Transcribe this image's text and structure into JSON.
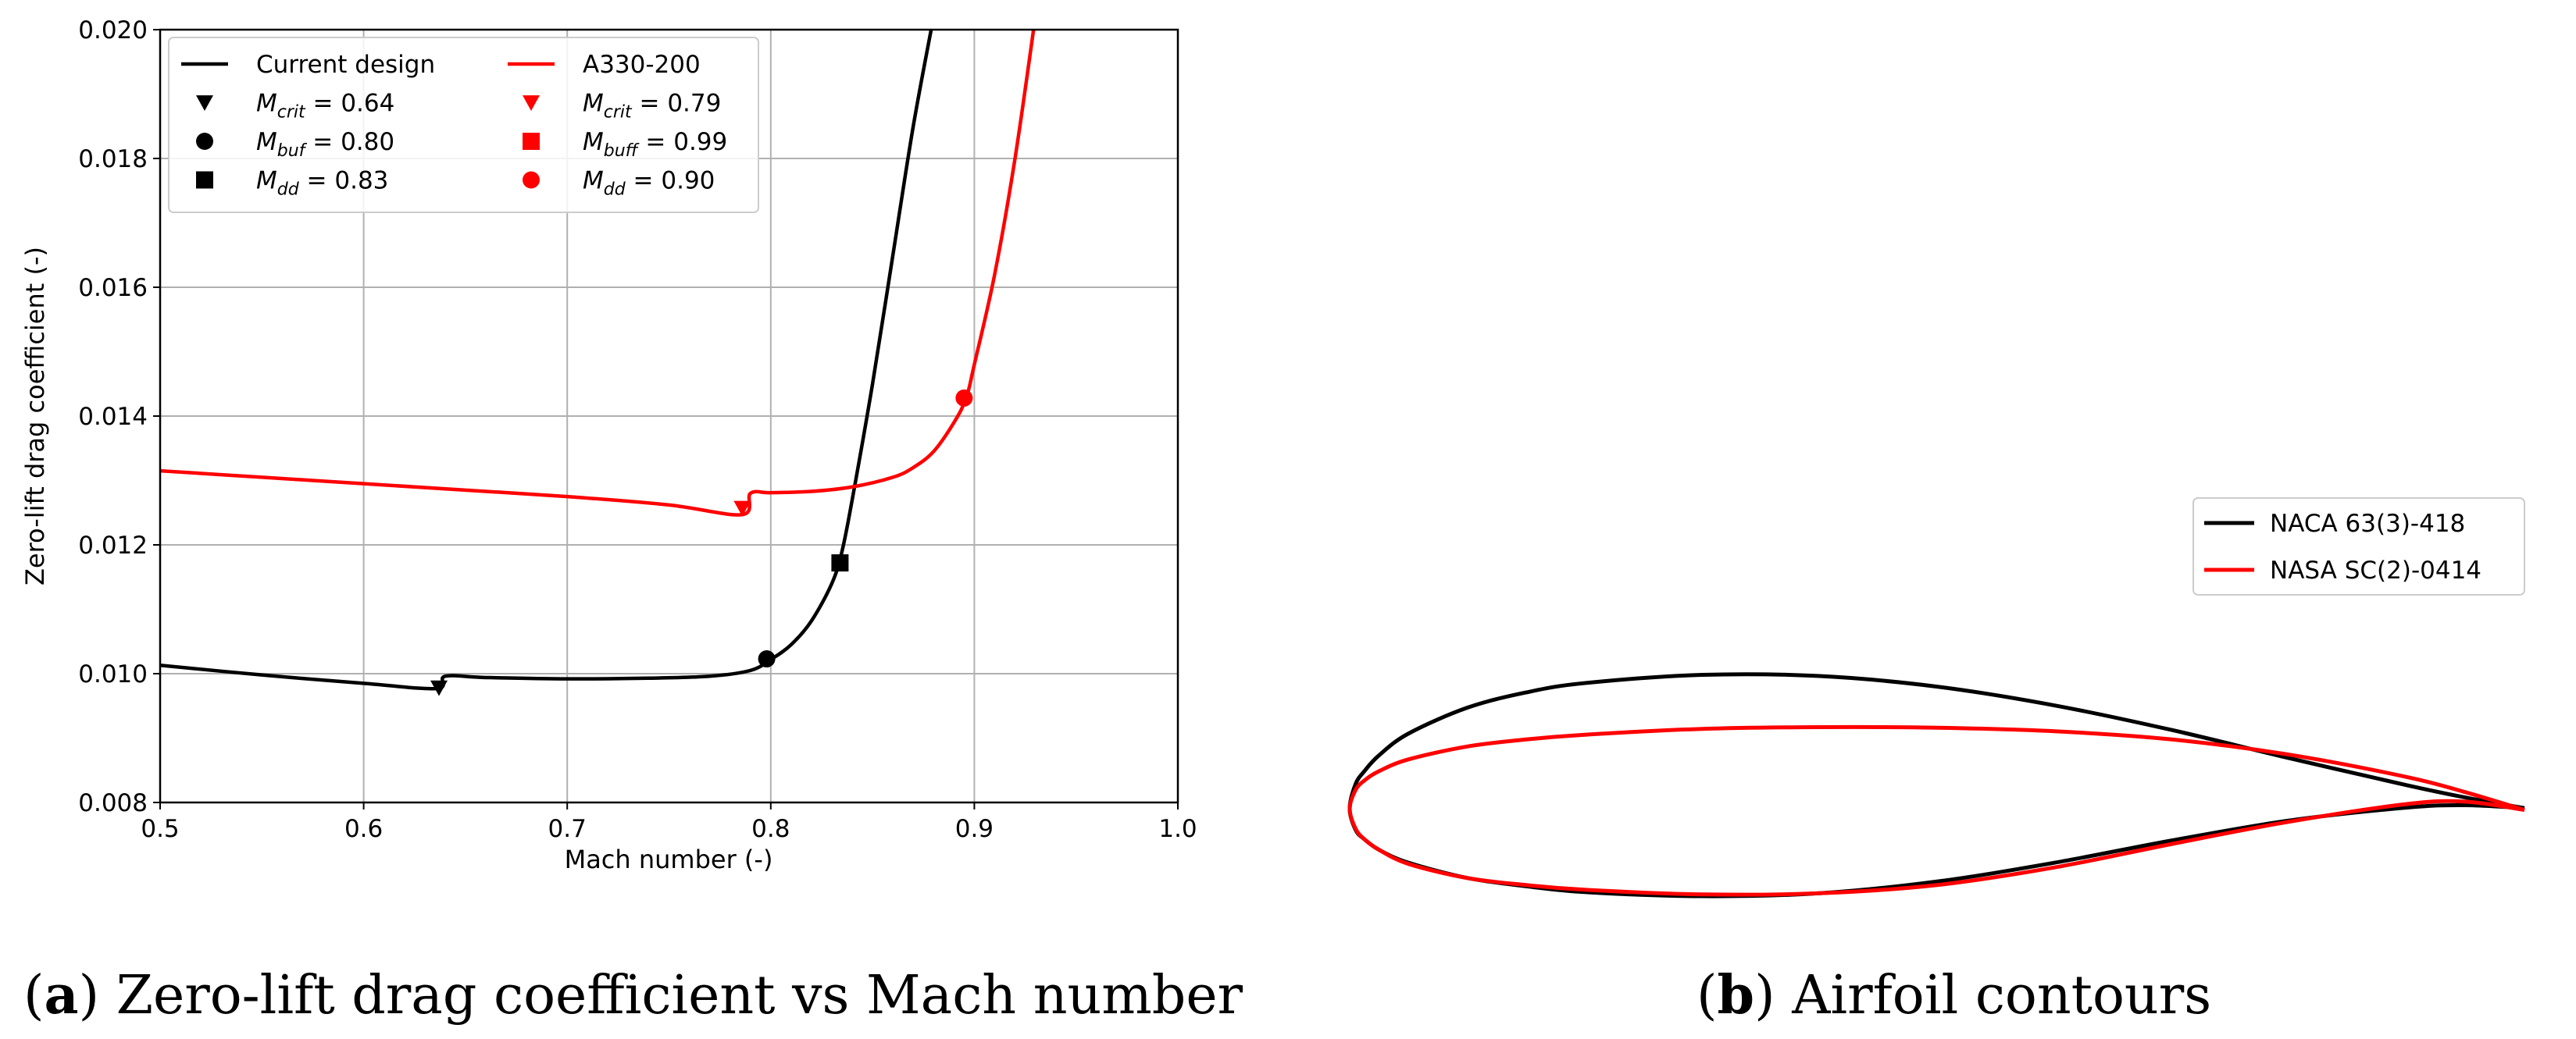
{
  "chart_data": [
    {
      "type": "line",
      "caption_letter": "a",
      "caption_text": "Zero-lift drag coefficient vs Mach number",
      "xlabel": "Mach number (-)",
      "ylabel": "Zero-lift drag coefficient (-)",
      "xlim": [
        0.5,
        1.0
      ],
      "ylim": [
        0.008,
        0.02
      ],
      "xticks": [
        0.5,
        0.6,
        0.7,
        0.8,
        0.9,
        1.0
      ],
      "xtick_labels": [
        "0.5",
        "0.6",
        "0.7",
        "0.8",
        "0.9",
        "1.0"
      ],
      "yticks": [
        0.008,
        0.01,
        0.012,
        0.014,
        0.016,
        0.018,
        0.02
      ],
      "ytick_labels": [
        "0.008",
        "0.010",
        "0.012",
        "0.014",
        "0.016",
        "0.018",
        "0.020"
      ],
      "grid": true,
      "legend_position": "top-left",
      "series": [
        {
          "name": "Current design",
          "color": "#000000",
          "x": [
            0.5,
            0.55,
            0.6,
            0.636,
            0.64,
            0.66,
            0.7,
            0.74,
            0.77,
            0.79,
            0.8,
            0.81,
            0.82,
            0.83,
            0.835,
            0.84,
            0.85,
            0.86,
            0.87,
            0.88
          ],
          "y": [
            0.01013,
            0.00998,
            0.00985,
            0.00977,
            0.00996,
            0.00994,
            0.00992,
            0.00993,
            0.00996,
            0.01005,
            0.01022,
            0.01045,
            0.01082,
            0.0114,
            0.0119,
            0.0127,
            0.0145,
            0.0165,
            0.0185,
            0.0202
          ],
          "markers": [
            {
              "label": "M_crit = 0.64",
              "symbol": "triangle-down",
              "x": 0.637,
              "y": 0.00978
            },
            {
              "label": "M_buf = 0.80",
              "symbol": "circle",
              "x": 0.798,
              "y": 0.01023
            },
            {
              "label": "M_dd = 0.83",
              "symbol": "square",
              "x": 0.834,
              "y": 0.01172
            }
          ]
        },
        {
          "name": "A330-200",
          "color": "#ff0000",
          "x": [
            0.5,
            0.55,
            0.6,
            0.65,
            0.7,
            0.75,
            0.786,
            0.79,
            0.8,
            0.82,
            0.84,
            0.86,
            0.87,
            0.88,
            0.89,
            0.896,
            0.9,
            0.91,
            0.92,
            0.93
          ],
          "y": [
            0.01315,
            0.01305,
            0.01295,
            0.01285,
            0.01275,
            0.01262,
            0.01247,
            0.0128,
            0.01281,
            0.01283,
            0.0129,
            0.01305,
            0.0132,
            0.01345,
            0.0139,
            0.01428,
            0.0148,
            0.0162,
            0.018,
            0.0202
          ],
          "markers": [
            {
              "label": "M_crit = 0.79",
              "symbol": "triangle-down",
              "x": 0.786,
              "y": 0.01257
            },
            {
              "label": "M_buff = 0.99",
              "symbol": "square",
              "x": null,
              "y": null
            },
            {
              "label": "M_dd = 0.90",
              "symbol": "circle",
              "x": 0.895,
              "y": 0.01428
            }
          ]
        }
      ],
      "legend": [
        {
          "kind": "line",
          "color": "#000000",
          "label": "Current design"
        },
        {
          "kind": "triangle-down",
          "color": "#000000",
          "sym": "M",
          "sub": "crit",
          "val": " = 0.64"
        },
        {
          "kind": "circle",
          "color": "#000000",
          "sym": "M",
          "sub": "buf",
          "val": " = 0.80"
        },
        {
          "kind": "square",
          "color": "#000000",
          "sym": "M",
          "sub": "dd",
          "val": " = 0.83"
        },
        {
          "kind": "line",
          "color": "#ff0000",
          "label": "A330-200"
        },
        {
          "kind": "triangle-down",
          "color": "#ff0000",
          "sym": "M",
          "sub": "crit",
          "val": " = 0.79"
        },
        {
          "kind": "square",
          "color": "#ff0000",
          "sym": "M",
          "sub": "buff",
          "val": " = 0.99"
        },
        {
          "kind": "circle",
          "color": "#ff0000",
          "sym": "M",
          "sub": "dd",
          "val": " = 0.90"
        }
      ]
    },
    {
      "type": "line",
      "caption_letter": "b",
      "caption_text": "Airfoil contours",
      "xlim": [
        0,
        1
      ],
      "ylim": [
        -0.12,
        0.12
      ],
      "legend_position": "top-right",
      "series": [
        {
          "name": "NACA 63(3)-418",
          "color": "#000000",
          "upper": {
            "x": [
              0,
              0.005,
              0.0125,
              0.025,
              0.05,
              0.1,
              0.15,
              0.2,
              0.3,
              0.4,
              0.5,
              0.6,
              0.7,
              0.8,
              0.9,
              0.95,
              1.0
            ],
            "y": [
              0,
              0.021,
              0.032,
              0.0455,
              0.064,
              0.086,
              0.099,
              0.107,
              0.114,
              0.113,
              0.104,
              0.088,
              0.067,
              0.043,
              0.02,
              0.0095,
              0.0005
            ]
          },
          "lower": {
            "x": [
              0,
              0.005,
              0.0125,
              0.025,
              0.05,
              0.1,
              0.15,
              0.2,
              0.3,
              0.4,
              0.5,
              0.6,
              0.7,
              0.8,
              0.9,
              0.95,
              1.0
            ],
            "y": [
              0,
              -0.018,
              -0.026,
              -0.035,
              -0.046,
              -0.059,
              -0.066,
              -0.071,
              -0.0745,
              -0.072,
              -0.062,
              -0.046,
              -0.027,
              -0.01,
              0.001,
              0.003,
              0.0005
            ]
          }
        },
        {
          "name": "NASA SC(2)-0414",
          "color": "#ff0000",
          "upper": {
            "x": [
              0,
              0.005,
              0.0125,
              0.025,
              0.05,
              0.1,
              0.15,
              0.2,
              0.3,
              0.4,
              0.5,
              0.6,
              0.7,
              0.8,
              0.9,
              0.95,
              1.0
            ],
            "y": [
              0,
              0.016,
              0.024,
              0.032,
              0.042,
              0.053,
              0.059,
              0.063,
              0.068,
              0.0695,
              0.069,
              0.066,
              0.059,
              0.046,
              0.027,
              0.014,
              -0.001
            ]
          },
          "lower": {
            "x": [
              0,
              0.005,
              0.0125,
              0.025,
              0.05,
              0.1,
              0.15,
              0.2,
              0.3,
              0.4,
              0.5,
              0.6,
              0.7,
              0.8,
              0.9,
              0.95,
              1.0
            ],
            "y": [
              0,
              -0.017,
              -0.026,
              -0.035,
              -0.047,
              -0.059,
              -0.065,
              -0.069,
              -0.073,
              -0.072,
              -0.065,
              -0.05,
              -0.03,
              -0.011,
              0.004,
              0.006,
              -0.001
            ]
          }
        }
      ],
      "legend": [
        {
          "color": "#000000",
          "label": "NACA 63(3)-418"
        },
        {
          "color": "#ff0000",
          "label": "NASA SC(2)-0414"
        }
      ]
    }
  ]
}
